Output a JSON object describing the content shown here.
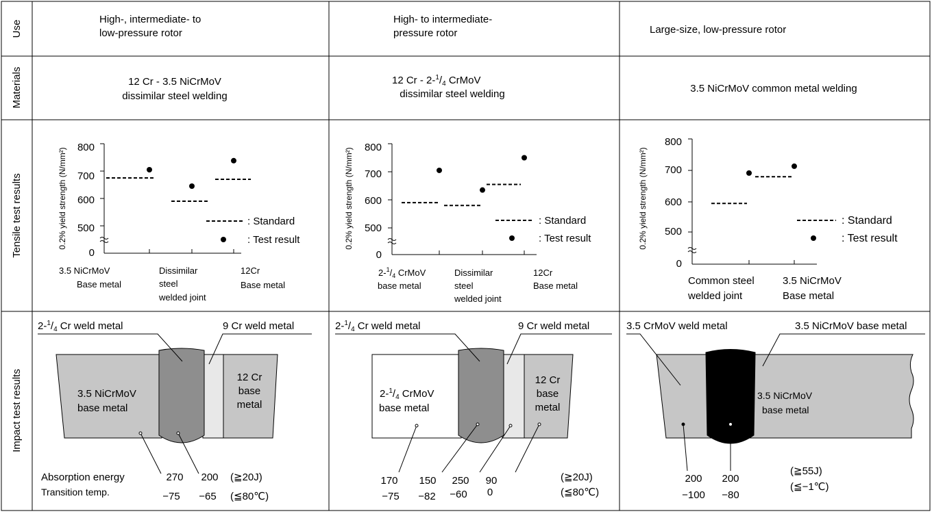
{
  "row_labels": {
    "use": "Use",
    "materials": "Materials",
    "tensile": "Tensile test results",
    "impact": "Impact test results"
  },
  "columns": [
    {
      "use": [
        "High-, intermediate- to",
        "low-pressure rotor"
      ],
      "materials": {
        "line1": {
          "text": "12 Cr - 3.5 NiCrMoV"
        },
        "line2": "dissimilar steel welding"
      },
      "tensile": {
        "ylabel": "0.2% yield strength (N/mm²)",
        "ticks": [
          "800",
          "700",
          "600",
          "500",
          "0"
        ],
        "categories": [
          [
            "3.5 NiCrMoV",
            "Base metal"
          ],
          [
            "Dissimilar",
            "steel",
            "welded joint"
          ],
          [
            "12Cr",
            "Base metal"
          ]
        ],
        "legend_standard": ": Standard",
        "legend_test": ": Test result"
      },
      "impact": {
        "label_left": {
          "pre": "2-",
          "sup": "1",
          "sub": "4",
          "post": " Cr weld metal"
        },
        "label_right": "9 Cr weld metal",
        "zone1": [
          "3.5 NiCrMoV",
          "base metal"
        ],
        "zone3": [
          "12 Cr",
          "base",
          "metal"
        ],
        "absorption_label": "Absorption energy",
        "transition_label": "Transition temp.",
        "abs_values": [
          "270",
          "200"
        ],
        "temp_values": [
          "−75",
          "−65"
        ],
        "req_abs": "(≧20J)",
        "req_temp": "(≦80℃)"
      }
    },
    {
      "use": [
        "High- to intermediate-",
        "pressure rotor"
      ],
      "materials": {
        "line1": {
          "pre": "12 Cr - 2-",
          "sup": "1",
          "sub": "4",
          "post": " CrMoV"
        },
        "line2": "dissimilar steel welding"
      },
      "tensile": {
        "ylabel": "0.2% yield strength (N/mm²)",
        "ticks": [
          "800",
          "700",
          "600",
          "500",
          "0"
        ],
        "categories": [
          [
            "2-1/4 CrMoV",
            "base metal"
          ],
          [
            "Dissimilar",
            "steel",
            "welded joint"
          ],
          [
            "12Cr",
            "Base metal"
          ]
        ],
        "legend_standard": ": Standard",
        "legend_test": ": Test result"
      },
      "impact": {
        "label_left": {
          "pre": "2-",
          "sup": "1",
          "sub": "4",
          "post": " Cr weld metal"
        },
        "label_right": "9 Cr weld metal",
        "zone1": [
          "2-1/4 CrMoV",
          "base metal"
        ],
        "zone3": [
          "12 Cr",
          "base",
          "metal"
        ],
        "abs_values": [
          "170",
          "150",
          "250",
          "90"
        ],
        "temp_values": [
          "−75",
          "−82",
          "−60",
          "0"
        ],
        "req_abs": "(≧20J)",
        "req_temp": "(≦80℃)"
      }
    },
    {
      "use": [
        "Large-size, low-pressure rotor"
      ],
      "materials": {
        "line1": {
          "text": "3.5 NiCrMoV common metal welding"
        }
      },
      "tensile": {
        "ylabel": "0.2% yield strength (N/mm²)",
        "ticks": [
          "800",
          "700",
          "600",
          "500",
          "0"
        ],
        "categories": [
          [
            "Common steel",
            "welded joint"
          ],
          [
            "3.5 NiCrMoV",
            "Base metal"
          ]
        ],
        "legend_standard": ": Standard",
        "legend_test": ": Test result"
      },
      "impact": {
        "label_left": "3.5 CrMoV weld metal",
        "label_right": "3.5 NiCrMoV base metal",
        "zone2": [
          "3.5 NiCrMoV",
          "base metal"
        ],
        "abs_values": [
          "200",
          "200"
        ],
        "temp_values": [
          "−100",
          "−80"
        ],
        "req_abs": "(≧55J)",
        "req_temp": "(≦−1℃)"
      }
    }
  ],
  "chart_data": [
    {
      "type": "scatter",
      "ylabel": "0.2% yield strength (N/mm²)",
      "ylim": [
        500,
        800
      ],
      "categories": [
        "3.5 NiCrMoV Base metal",
        "Dissimilar steel welded joint",
        "12Cr Base metal"
      ],
      "series": [
        {
          "name": "Standard",
          "values": [
            675,
            590,
            670
          ]
        },
        {
          "name": "Test result",
          "values": [
            705,
            645,
            738
          ]
        }
      ]
    },
    {
      "type": "scatter",
      "ylabel": "0.2% yield strength (N/mm²)",
      "ylim": [
        500,
        800
      ],
      "categories": [
        "2-1/4 CrMoV base metal",
        "Dissimilar steel welded joint",
        "12Cr Base metal"
      ],
      "series": [
        {
          "name": "Standard",
          "values": [
            590,
            580,
            655
          ]
        },
        {
          "name": "Test result",
          "values": [
            705,
            635,
            750
          ]
        }
      ]
    },
    {
      "type": "scatter",
      "ylabel": "0.2% yield strength (N/mm²)",
      "ylim": [
        500,
        800
      ],
      "categories": [
        "Common steel welded joint",
        "3.5 NiCrMoV Base metal"
      ],
      "series": [
        {
          "name": "Standard",
          "values": [
            592,
            678
          ]
        },
        {
          "name": "Test result",
          "values": [
            690,
            712
          ]
        }
      ]
    }
  ]
}
